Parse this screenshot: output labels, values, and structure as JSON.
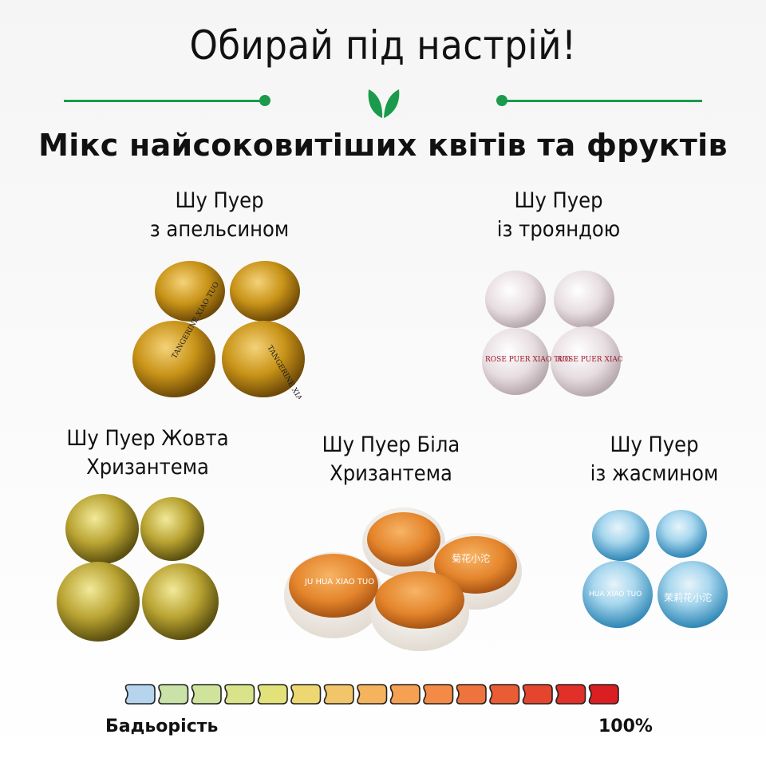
{
  "header": {
    "title": "Обирай під настрій!",
    "subtitle": "Мікс найсоковитіших квітів та фруктів"
  },
  "products": [
    {
      "line1": "Шу Пуер",
      "line2": "з апельсином",
      "wrapper_text": "TANGERINE XIAO TUO",
      "wrapper_color": "#c79518"
    },
    {
      "line1": "Шу Пуер",
      "line2": "із трояндою",
      "wrapper_text": "ROSE PUER XIAO TUO",
      "wrapper_color": "#e9e2e4"
    },
    {
      "line1": "Шу Пуер Жовта",
      "line2": "Хризантема",
      "wrapper_color": "#b9a332"
    },
    {
      "line1": "Шу Пуер Біла",
      "line2": "Хризантема",
      "wrapper_text": "JU HUA XIAO TUO",
      "wrapper_text_cn": "菊花小沱",
      "wrapper_color": "#e4852c"
    },
    {
      "line1": "Шу Пуер",
      "line2": "із жасмином",
      "wrapper_text": "HUA XIAO TUO",
      "wrapper_text_cn": "茉莉花小沱",
      "wrapper_color": "#4da7cf"
    }
  ],
  "scale": {
    "label": "Бадьорість",
    "value_label": "100%",
    "segment_colors": [
      "#b6d4ee",
      "#c8e2a8",
      "#cfe39a",
      "#d9e48a",
      "#e3e27a",
      "#ecd772",
      "#f3c56a",
      "#f5b35e",
      "#f5a052",
      "#f38a46",
      "#ef733d",
      "#ea5c34",
      "#e5452d",
      "#e03028",
      "#db1e22"
    ]
  },
  "colors": {
    "accent": "#1b9a4b"
  }
}
